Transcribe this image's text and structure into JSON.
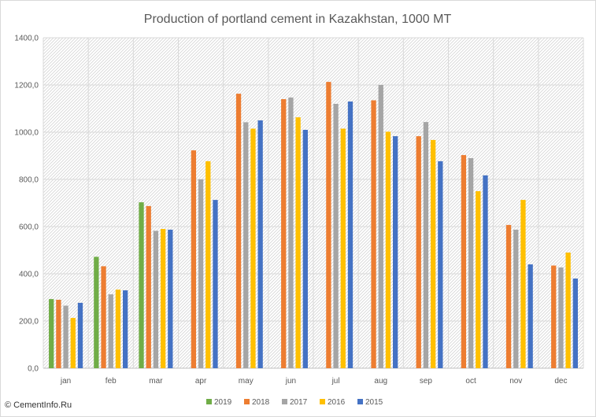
{
  "chart_data": {
    "type": "bar",
    "title": "Production of portland cement in Kazakhstan, 1000 MT",
    "xlabel": "",
    "ylabel": "",
    "ylim": [
      0,
      1400
    ],
    "yticks": [
      "0,0",
      "200,0",
      "400,0",
      "600,0",
      "800,0",
      "1000,0",
      "1200,0",
      "1400,0"
    ],
    "grid": true,
    "legend_position": "bottom",
    "categories": [
      "jan",
      "feb",
      "mar",
      "apr",
      "may",
      "jun",
      "jul",
      "aug",
      "sep",
      "oct",
      "nov",
      "dec"
    ],
    "series": [
      {
        "name": "2019",
        "color": "#70ad47",
        "values": [
          293,
          472,
          703,
          null,
          null,
          null,
          null,
          null,
          null,
          null,
          null,
          null
        ]
      },
      {
        "name": "2018",
        "color": "#ed7d31",
        "values": [
          290,
          432,
          687,
          923,
          1163,
          1140,
          1213,
          1135,
          983,
          903,
          607,
          435
        ]
      },
      {
        "name": "2017",
        "color": "#a5a5a5",
        "values": [
          265,
          313,
          582,
          800,
          1042,
          1147,
          1120,
          1200,
          1043,
          890,
          587,
          427
        ]
      },
      {
        "name": "2016",
        "color": "#ffc000",
        "values": [
          213,
          333,
          590,
          877,
          1015,
          1063,
          1015,
          1002,
          967,
          750,
          713,
          490
        ]
      },
      {
        "name": "2015",
        "color": "#4472c4",
        "values": [
          277,
          330,
          587,
          713,
          1050,
          1010,
          1130,
          983,
          877,
          817,
          440,
          380
        ]
      }
    ]
  },
  "credit": "© CementInfo.Ru"
}
